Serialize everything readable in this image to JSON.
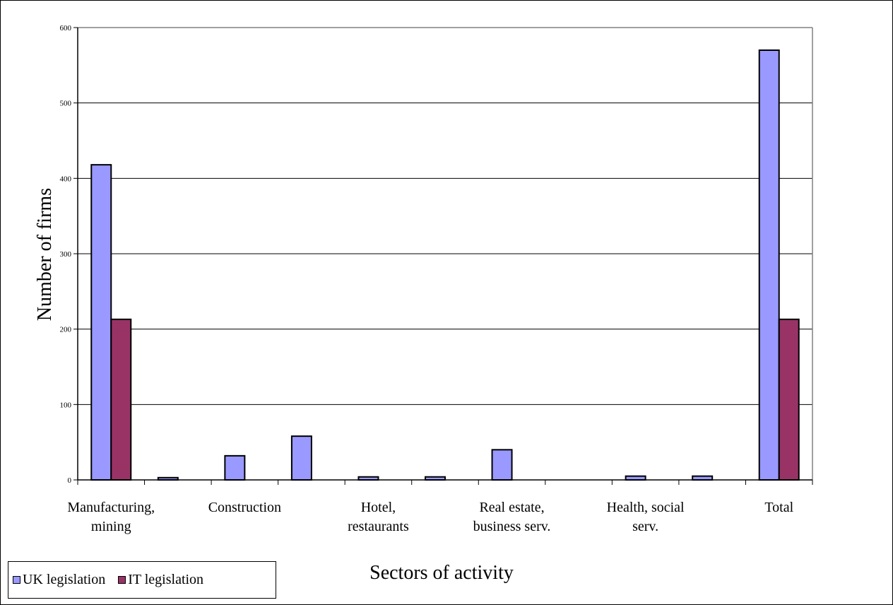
{
  "chart_data": {
    "type": "bar",
    "ylabel": "Number of firms",
    "xlabel": "Sectors of activity",
    "ylim": [
      0,
      600
    ],
    "yticks": [
      0,
      100,
      200,
      300,
      400,
      500,
      600
    ],
    "grid": true,
    "legend_position": "bottom-left",
    "categories": [
      "Manufacturing, mining",
      "",
      "Construction",
      "",
      "Hotel, restaurants",
      "",
      "Real estate, business serv.",
      "",
      "Health, social serv.",
      "",
      "Total"
    ],
    "category_labels": [
      [
        "Manufacturing,",
        "mining"
      ],
      [],
      [
        "Construction"
      ],
      [],
      [
        "Hotel,",
        "restaurants"
      ],
      [],
      [
        "Real estate,",
        "business serv."
      ],
      [],
      [
        "Health, social",
        "serv."
      ],
      [],
      [
        "Total"
      ]
    ],
    "series": [
      {
        "name": "UK legislation",
        "color": "#9999ff",
        "values": [
          418,
          3,
          32,
          58,
          4,
          4,
          40,
          0,
          5,
          5,
          570
        ]
      },
      {
        "name": "IT legislation",
        "color": "#993366",
        "values": [
          213,
          0,
          0,
          0,
          0,
          0,
          0,
          0,
          0,
          0,
          213
        ]
      }
    ]
  }
}
